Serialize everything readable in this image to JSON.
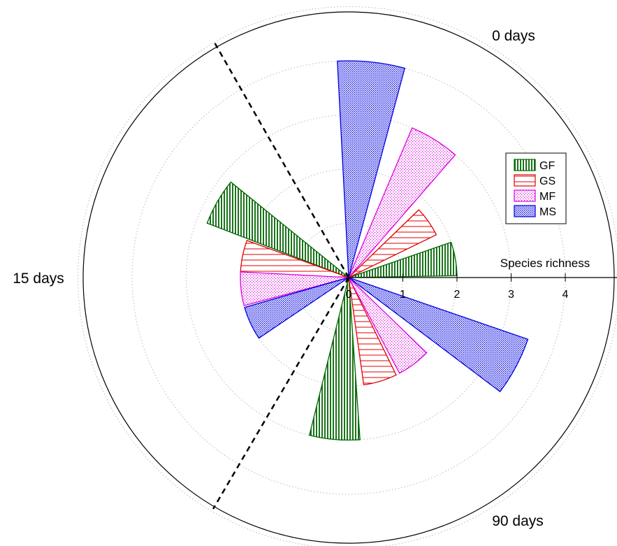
{
  "chart_data": {
    "type": "polar-bar",
    "radial_axis": {
      "label": "Species richness",
      "ticks": [
        "0",
        "1",
        "2",
        "3",
        "4",
        "5"
      ],
      "range": [
        0,
        5
      ]
    },
    "angular_labels": [
      "0 days",
      "15 days",
      "90 days"
    ],
    "grid": true,
    "legend_position": "top-right",
    "series": [
      {
        "name": "GF",
        "color": "#006400",
        "pattern": "vertical-lines",
        "values": {
          "0 days": 2.0,
          "15 days": 2.8,
          "90 days": 3.0
        }
      },
      {
        "name": "GS",
        "color": "#e00000",
        "pattern": "horizontal-lines",
        "values": {
          "0 days": 1.8,
          "15 days": 2.0,
          "90 days": 2.0
        }
      },
      {
        "name": "MF",
        "color": "#e000e0",
        "pattern": "dots",
        "values": {
          "0 days": 3.0,
          "15 days": 2.0,
          "90 days": 2.0
        }
      },
      {
        "name": "MS",
        "color": "#0000e0",
        "pattern": "dense-dots",
        "values": {
          "0 days": 4.0,
          "15 days": 2.0,
          "90 days": 3.5
        }
      }
    ]
  }
}
